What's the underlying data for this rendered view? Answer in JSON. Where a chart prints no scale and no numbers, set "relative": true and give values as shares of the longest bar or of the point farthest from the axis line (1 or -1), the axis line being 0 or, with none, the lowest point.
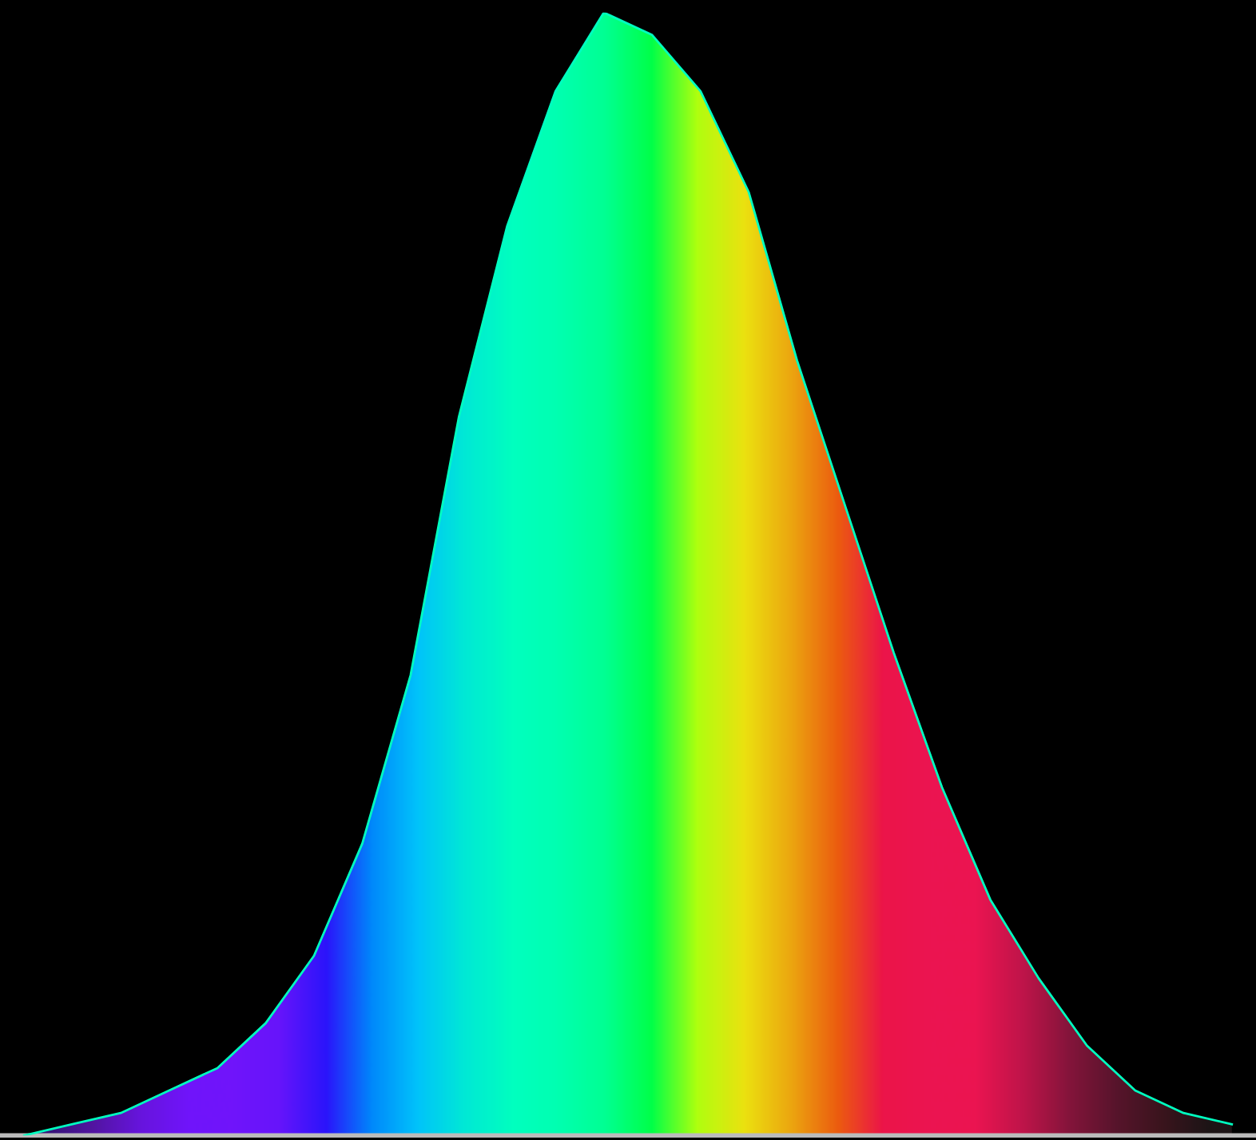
{
  "chart_data": {
    "type": "area",
    "relative": true,
    "categories": [
      null,
      null,
      null,
      null,
      null,
      null,
      null,
      null,
      null,
      null,
      null,
      null,
      null,
      null,
      null,
      null,
      null,
      null,
      null,
      null,
      null,
      null,
      null,
      null,
      null,
      null
    ],
    "series": [
      {
        "color": "#00ffc0",
        "values": [
          0.0,
          0.01,
          0.02,
          0.04,
          0.06,
          0.1,
          0.16,
          0.26,
          0.41,
          0.64,
          0.81,
          0.93,
          1.0,
          0.98,
          0.93,
          0.84,
          0.69,
          0.56,
          0.43,
          0.31,
          0.21,
          0.14,
          0.08,
          0.04,
          0.02,
          0.01
        ],
        "colors": [
          "#3a0070",
          "#5a00a0",
          "#7000e0",
          "#7a00ff",
          "#7a00ff",
          "#7000ff",
          "#3000ff",
          "#0080ff",
          "#00c0ff",
          "#00e8d8",
          "#00ffc0",
          "#00ffb0",
          "#00ff90",
          "#00ff40",
          "#c0ff00",
          "#ffe000",
          "#ffa000",
          "#ff5000",
          "#ff0040",
          "#ff0048",
          "#ff0048",
          "#d00040",
          "#900030",
          "#600020",
          "#400010",
          "#200008"
        ]
      }
    ]
  }
}
